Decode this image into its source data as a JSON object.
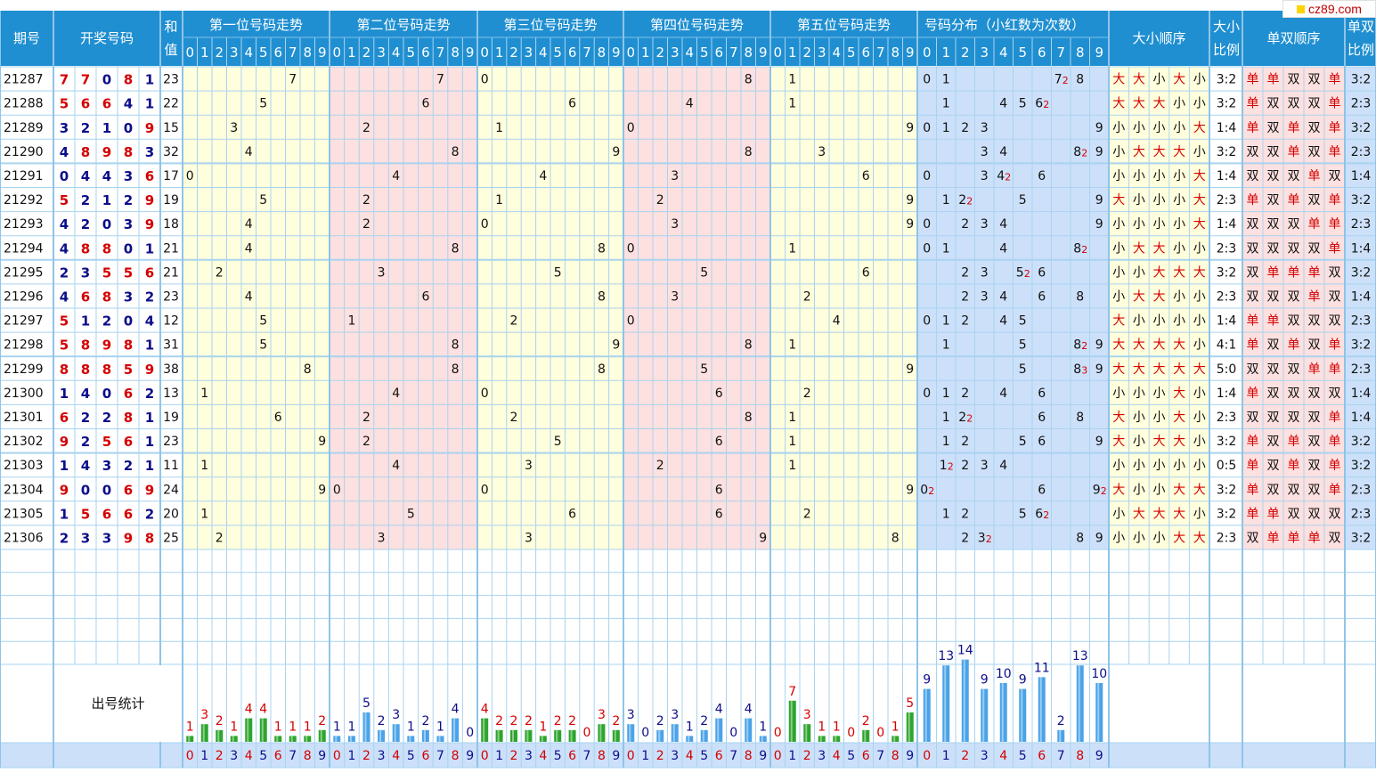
{
  "header": {
    "period": "期号",
    "numbers": "开奖号码",
    "sum": "和值",
    "pos": [
      "第一位号码走势",
      "第二位号码走势",
      "第三位号码走势",
      "第四位号码走势",
      "第五位号码走势"
    ],
    "dist": "号码分布（小红数为次数）",
    "size_order": "大小顺序",
    "size_ratio": "大小比例",
    "oe_order": "单双顺序",
    "oe_ratio": "单双比例"
  },
  "footer": {
    "stats_label": "出号统计"
  },
  "logo_text": "cz89.com",
  "digits": [
    "0",
    "1",
    "2",
    "3",
    "4",
    "5",
    "6",
    "7",
    "8",
    "9"
  ],
  "colors": {
    "header_bg": "#1f8fd1",
    "grid_line": "#a9d3ef",
    "yellow_zone": "#ffffdd",
    "pink_zone": "#fde0e0",
    "blue_zone": "#cce0fa",
    "red": "#d40000",
    "navy": "#0d0d8a",
    "green_bar": "#2da52d",
    "blue_bar": "#4aa3e8"
  },
  "chart_data": {
    "type": "table",
    "rows": [
      {
        "period": "21287",
        "numbers": [
          7,
          7,
          0,
          8,
          1
        ],
        "sum": "23",
        "dist": [
          [
            0,
            0
          ],
          [
            1,
            0
          ],
          [
            7,
            2
          ],
          [
            8,
            0
          ]
        ],
        "size": [
          "大",
          "大",
          "小",
          "大",
          "小"
        ],
        "size_ratio": "3:2",
        "oe": [
          "单",
          "单",
          "双",
          "双",
          "单"
        ],
        "oe_ratio": "3:2"
      },
      {
        "period": "21288",
        "numbers": [
          5,
          6,
          6,
          4,
          1
        ],
        "sum": "22",
        "dist": [
          [
            1,
            0
          ],
          [
            4,
            0
          ],
          [
            5,
            0
          ],
          [
            6,
            2
          ]
        ],
        "size": [
          "大",
          "大",
          "大",
          "小",
          "小"
        ],
        "size_ratio": "3:2",
        "oe": [
          "单",
          "双",
          "双",
          "双",
          "单"
        ],
        "oe_ratio": "2:3"
      },
      {
        "period": "21289",
        "numbers": [
          3,
          2,
          1,
          0,
          9
        ],
        "sum": "15",
        "dist": [
          [
            0,
            0
          ],
          [
            1,
            0
          ],
          [
            2,
            0
          ],
          [
            3,
            0
          ],
          [
            9,
            0
          ]
        ],
        "size": [
          "小",
          "小",
          "小",
          "小",
          "大"
        ],
        "size_ratio": "1:4",
        "oe": [
          "单",
          "双",
          "单",
          "双",
          "单"
        ],
        "oe_ratio": "3:2"
      },
      {
        "period": "21290",
        "numbers": [
          4,
          8,
          9,
          8,
          3
        ],
        "sum": "32",
        "dist": [
          [
            3,
            0
          ],
          [
            4,
            0
          ],
          [
            8,
            2
          ],
          [
            9,
            0
          ]
        ],
        "size": [
          "小",
          "大",
          "大",
          "大",
          "小"
        ],
        "size_ratio": "3:2",
        "oe": [
          "双",
          "双",
          "单",
          "双",
          "单"
        ],
        "oe_ratio": "2:3"
      },
      {
        "period": "21291",
        "numbers": [
          0,
          4,
          4,
          3,
          6
        ],
        "sum": "17",
        "dist": [
          [
            0,
            0
          ],
          [
            3,
            0
          ],
          [
            4,
            2
          ],
          [
            6,
            0
          ]
        ],
        "size": [
          "小",
          "小",
          "小",
          "小",
          "大"
        ],
        "size_ratio": "1:4",
        "oe": [
          "双",
          "双",
          "双",
          "单",
          "双"
        ],
        "oe_ratio": "1:4"
      },
      {
        "period": "21292",
        "numbers": [
          5,
          2,
          1,
          2,
          9
        ],
        "sum": "19",
        "dist": [
          [
            1,
            0
          ],
          [
            2,
            2
          ],
          [
            5,
            0
          ],
          [
            9,
            0
          ]
        ],
        "size": [
          "大",
          "小",
          "小",
          "小",
          "大"
        ],
        "size_ratio": "2:3",
        "oe": [
          "单",
          "双",
          "单",
          "双",
          "单"
        ],
        "oe_ratio": "3:2"
      },
      {
        "period": "21293",
        "numbers": [
          4,
          2,
          0,
          3,
          9
        ],
        "sum": "18",
        "dist": [
          [
            0,
            0
          ],
          [
            2,
            0
          ],
          [
            3,
            0
          ],
          [
            4,
            0
          ],
          [
            9,
            0
          ]
        ],
        "size": [
          "小",
          "小",
          "小",
          "小",
          "大"
        ],
        "size_ratio": "1:4",
        "oe": [
          "双",
          "双",
          "双",
          "单",
          "单"
        ],
        "oe_ratio": "2:3"
      },
      {
        "period": "21294",
        "numbers": [
          4,
          8,
          8,
          0,
          1
        ],
        "sum": "21",
        "dist": [
          [
            0,
            0
          ],
          [
            1,
            0
          ],
          [
            4,
            0
          ],
          [
            8,
            2
          ]
        ],
        "size": [
          "小",
          "大",
          "大",
          "小",
          "小"
        ],
        "size_ratio": "2:3",
        "oe": [
          "双",
          "双",
          "双",
          "双",
          "单"
        ],
        "oe_ratio": "1:4"
      },
      {
        "period": "21295",
        "numbers": [
          2,
          3,
          5,
          5,
          6
        ],
        "sum": "21",
        "dist": [
          [
            2,
            0
          ],
          [
            3,
            0
          ],
          [
            5,
            2
          ],
          [
            6,
            0
          ]
        ],
        "size": [
          "小",
          "小",
          "大",
          "大",
          "大"
        ],
        "size_ratio": "3:2",
        "oe": [
          "双",
          "单",
          "单",
          "单",
          "双"
        ],
        "oe_ratio": "3:2"
      },
      {
        "period": "21296",
        "numbers": [
          4,
          6,
          8,
          3,
          2
        ],
        "sum": "23",
        "dist": [
          [
            2,
            0
          ],
          [
            3,
            0
          ],
          [
            4,
            0
          ],
          [
            6,
            0
          ],
          [
            8,
            0
          ]
        ],
        "size": [
          "小",
          "大",
          "大",
          "小",
          "小"
        ],
        "size_ratio": "2:3",
        "oe": [
          "双",
          "双",
          "双",
          "单",
          "双"
        ],
        "oe_ratio": "1:4"
      },
      {
        "period": "21297",
        "numbers": [
          5,
          1,
          2,
          0,
          4
        ],
        "sum": "12",
        "dist": [
          [
            0,
            0
          ],
          [
            1,
            0
          ],
          [
            2,
            0
          ],
          [
            4,
            0
          ],
          [
            5,
            0
          ]
        ],
        "size": [
          "大",
          "小",
          "小",
          "小",
          "小"
        ],
        "size_ratio": "1:4",
        "oe": [
          "单",
          "单",
          "双",
          "双",
          "双"
        ],
        "oe_ratio": "2:3"
      },
      {
        "period": "21298",
        "numbers": [
          5,
          8,
          9,
          8,
          1
        ],
        "sum": "31",
        "dist": [
          [
            1,
            0
          ],
          [
            5,
            0
          ],
          [
            8,
            2
          ],
          [
            9,
            0
          ]
        ],
        "size": [
          "大",
          "大",
          "大",
          "大",
          "小"
        ],
        "size_ratio": "4:1",
        "oe": [
          "单",
          "双",
          "单",
          "双",
          "单"
        ],
        "oe_ratio": "3:2"
      },
      {
        "period": "21299",
        "numbers": [
          8,
          8,
          8,
          5,
          9
        ],
        "sum": "38",
        "dist": [
          [
            5,
            0
          ],
          [
            8,
            3
          ],
          [
            9,
            0
          ]
        ],
        "size": [
          "大",
          "大",
          "大",
          "大",
          "大"
        ],
        "size_ratio": "5:0",
        "oe": [
          "双",
          "双",
          "双",
          "单",
          "单"
        ],
        "oe_ratio": "2:3"
      },
      {
        "period": "21300",
        "numbers": [
          1,
          4,
          0,
          6,
          2
        ],
        "sum": "13",
        "dist": [
          [
            0,
            0
          ],
          [
            1,
            0
          ],
          [
            2,
            0
          ],
          [
            4,
            0
          ],
          [
            6,
            0
          ]
        ],
        "size": [
          "小",
          "小",
          "小",
          "大",
          "小"
        ],
        "size_ratio": "1:4",
        "oe": [
          "单",
          "双",
          "双",
          "双",
          "双"
        ],
        "oe_ratio": "1:4"
      },
      {
        "period": "21301",
        "numbers": [
          6,
          2,
          2,
          8,
          1
        ],
        "sum": "19",
        "dist": [
          [
            1,
            0
          ],
          [
            2,
            2
          ],
          [
            6,
            0
          ],
          [
            8,
            0
          ]
        ],
        "size": [
          "大",
          "小",
          "小",
          "大",
          "小"
        ],
        "size_ratio": "2:3",
        "oe": [
          "双",
          "双",
          "双",
          "双",
          "单"
        ],
        "oe_ratio": "1:4"
      },
      {
        "period": "21302",
        "numbers": [
          9,
          2,
          5,
          6,
          1
        ],
        "sum": "23",
        "dist": [
          [
            1,
            0
          ],
          [
            2,
            0
          ],
          [
            5,
            0
          ],
          [
            6,
            0
          ],
          [
            9,
            0
          ]
        ],
        "size": [
          "大",
          "小",
          "大",
          "大",
          "小"
        ],
        "size_ratio": "3:2",
        "oe": [
          "单",
          "双",
          "单",
          "双",
          "单"
        ],
        "oe_ratio": "3:2"
      },
      {
        "period": "21303",
        "numbers": [
          1,
          4,
          3,
          2,
          1
        ],
        "sum": "11",
        "dist": [
          [
            1,
            2
          ],
          [
            2,
            0
          ],
          [
            3,
            0
          ],
          [
            4,
            0
          ]
        ],
        "size": [
          "小",
          "小",
          "小",
          "小",
          "小"
        ],
        "size_ratio": "0:5",
        "oe": [
          "单",
          "双",
          "单",
          "双",
          "单"
        ],
        "oe_ratio": "3:2"
      },
      {
        "period": "21304",
        "numbers": [
          9,
          0,
          0,
          6,
          9
        ],
        "sum": "24",
        "dist": [
          [
            0,
            2
          ],
          [
            6,
            0
          ],
          [
            9,
            2
          ]
        ],
        "size": [
          "大",
          "小",
          "小",
          "大",
          "大"
        ],
        "size_ratio": "3:2",
        "oe": [
          "单",
          "双",
          "双",
          "双",
          "单"
        ],
        "oe_ratio": "2:3"
      },
      {
        "period": "21305",
        "numbers": [
          1,
          5,
          6,
          6,
          2
        ],
        "sum": "20",
        "dist": [
          [
            1,
            0
          ],
          [
            2,
            0
          ],
          [
            5,
            0
          ],
          [
            6,
            2
          ]
        ],
        "size": [
          "小",
          "大",
          "大",
          "大",
          "小"
        ],
        "size_ratio": "3:2",
        "oe": [
          "单",
          "单",
          "双",
          "双",
          "双"
        ],
        "oe_ratio": "2:3"
      },
      {
        "period": "21306",
        "numbers": [
          2,
          3,
          3,
          9,
          8
        ],
        "sum": "25",
        "dist": [
          [
            2,
            0
          ],
          [
            3,
            2
          ],
          [
            8,
            0
          ],
          [
            9,
            0
          ]
        ],
        "size": [
          "小",
          "小",
          "小",
          "大",
          "大"
        ],
        "size_ratio": "2:3",
        "oe": [
          "双",
          "单",
          "单",
          "单",
          "双"
        ],
        "oe_ratio": "3:2"
      }
    ],
    "stats": {
      "pos1": [
        1,
        3,
        2,
        1,
        4,
        4,
        1,
        1,
        1,
        2
      ],
      "pos2": [
        1,
        1,
        5,
        2,
        3,
        1,
        2,
        1,
        4,
        0
      ],
      "pos3": [
        4,
        2,
        2,
        2,
        1,
        2,
        2,
        0,
        3,
        2
      ],
      "pos4": [
        3,
        0,
        2,
        3,
        1,
        2,
        4,
        0,
        4,
        1
      ],
      "pos5": [
        0,
        7,
        3,
        1,
        1,
        0,
        2,
        0,
        1,
        5
      ],
      "dist": [
        9,
        13,
        14,
        9,
        10,
        9,
        11,
        2,
        13,
        10
      ]
    }
  }
}
